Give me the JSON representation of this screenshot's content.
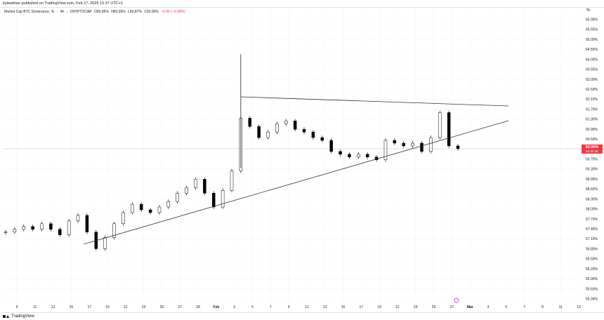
{
  "header": {
    "publish_line": "kyleadrian published on TradingView.com, Feb 27, 2025 15:37 UTC+1"
  },
  "legend": {
    "title": "Market Cap BTC Dominance, %",
    "interval": "4h",
    "source": "CRYPTOCAP",
    "open": "O60.95%",
    "high": "H60.95%",
    "low": "L60.87%",
    "close": "C60.90%",
    "change": "−0.05 (−0.08%)"
  },
  "price_badge": {
    "value": "60.90%",
    "countdown": "01:22:33",
    "color": "#f23645"
  },
  "percent_toggle": "%",
  "footer": {
    "brand": "TradingView"
  },
  "colors": {
    "candle_up": "#ffffff",
    "candle_down": "#000000",
    "candle_border": "#000000",
    "trendline": "#333333",
    "price_line": "#f23645",
    "grid": "#f0f3fa"
  },
  "chart_data": {
    "type": "candlestick",
    "title": "Market Cap BTC Dominance, %",
    "interval": "4h",
    "y_axis_ticks": [
      "65.95%",
      "65.55%",
      "65.00%",
      "64.55%",
      "64.00%",
      "63.55%",
      "63.00%",
      "62.50%",
      "62.10%",
      "61.70%",
      "61.30%",
      "60.90%",
      "60.50%",
      "60.10%",
      "59.70%",
      "59.30%",
      "58.90%",
      "58.60%",
      "58.30%",
      "58.00%",
      "57.70%",
      "57.40%",
      "57.10%",
      "56.80%",
      "56.50%",
      "56.20%",
      "55.90%",
      "55.60%",
      "55.34%"
    ],
    "ylim": [
      55.34,
      65.95
    ],
    "x_axis_ticks": [
      "9",
      "11",
      "13",
      "15",
      "17",
      "19",
      "21",
      "23",
      "25",
      "27",
      "29",
      "Feb",
      "3",
      "5",
      "7",
      "9",
      "11",
      "13",
      "15",
      "17",
      "19",
      "21",
      "23",
      "25",
      "27",
      "Mar",
      "3",
      "5",
      "7",
      "9",
      "11",
      "13"
    ],
    "current_price": 60.9,
    "close_series": [
      {
        "date": "Jan 8",
        "close": 57.9
      },
      {
        "date": "Jan 9",
        "close": 58.0
      },
      {
        "date": "Jan 10",
        "close": 58.1
      },
      {
        "date": "Jan 11",
        "close": 58.0
      },
      {
        "date": "Jan 12",
        "close": 58.2
      },
      {
        "date": "Jan 13",
        "close": 58.0
      },
      {
        "date": "Jan 14",
        "close": 57.8
      },
      {
        "date": "Jan 15",
        "close": 58.3
      },
      {
        "date": "Jan 16",
        "close": 58.5
      },
      {
        "date": "Jan 17",
        "close": 57.9
      },
      {
        "date": "Jan 18",
        "close": 57.3
      },
      {
        "date": "Jan 19",
        "close": 57.7
      },
      {
        "date": "Jan 20",
        "close": 58.2
      },
      {
        "date": "Jan 21",
        "close": 58.6
      },
      {
        "date": "Jan 22",
        "close": 58.9
      },
      {
        "date": "Jan 23",
        "close": 58.7
      },
      {
        "date": "Jan 24",
        "close": 58.6
      },
      {
        "date": "Jan 25",
        "close": 58.8
      },
      {
        "date": "Jan 26",
        "close": 59.0
      },
      {
        "date": "Jan 27",
        "close": 59.3
      },
      {
        "date": "Jan 28",
        "close": 59.5
      },
      {
        "date": "Jan 29",
        "close": 59.8
      },
      {
        "date": "Jan 30",
        "close": 59.3
      },
      {
        "date": "Jan 31",
        "close": 58.8
      },
      {
        "date": "Feb 1",
        "close": 59.4
      },
      {
        "date": "Feb 2",
        "close": 60.1
      },
      {
        "date": "Feb 3",
        "close": 62.0
      },
      {
        "date": "Feb 4",
        "close": 61.7
      },
      {
        "date": "Feb 5",
        "close": 61.3
      },
      {
        "date": "Feb 6",
        "close": 61.5
      },
      {
        "date": "Feb 7",
        "close": 61.8
      },
      {
        "date": "Feb 8",
        "close": 61.9
      },
      {
        "date": "Feb 9",
        "close": 61.6
      },
      {
        "date": "Feb 10",
        "close": 61.5
      },
      {
        "date": "Feb 11",
        "close": 61.3
      },
      {
        "date": "Feb 12",
        "close": 61.2
      },
      {
        "date": "Feb 13",
        "close": 60.8
      },
      {
        "date": "Feb 14",
        "close": 60.7
      },
      {
        "date": "Feb 15",
        "close": 60.6
      },
      {
        "date": "Feb 16",
        "close": 60.7
      },
      {
        "date": "Feb 17",
        "close": 60.6
      },
      {
        "date": "Feb 18",
        "close": 60.5
      },
      {
        "date": "Feb 19",
        "close": 61.2
      },
      {
        "date": "Feb 20",
        "close": 61.1
      },
      {
        "date": "Feb 21",
        "close": 61.0
      },
      {
        "date": "Feb 22",
        "close": 61.1
      },
      {
        "date": "Feb 23",
        "close": 60.8
      },
      {
        "date": "Feb 24",
        "close": 61.3
      },
      {
        "date": "Feb 25",
        "close": 62.2
      },
      {
        "date": "Feb 26",
        "close": 61.0
      },
      {
        "date": "Feb 27",
        "close": 60.9
      }
    ]
  }
}
